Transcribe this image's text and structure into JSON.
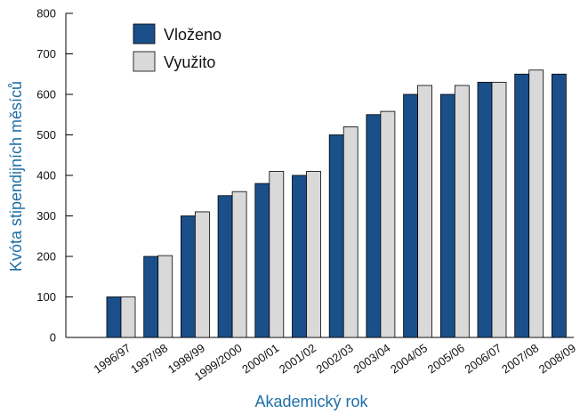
{
  "chart_data": {
    "type": "bar",
    "title": "",
    "xlabel": "Akademický rok",
    "ylabel": "Kvóta stipendijních měsíců",
    "ylim": [
      0,
      800
    ],
    "yticks": [
      0,
      100,
      200,
      300,
      400,
      500,
      600,
      700,
      800
    ],
    "grid": false,
    "legend_position": "top-left",
    "categories": [
      "1996/97",
      "1997/98",
      "1998/99",
      "1999/2000",
      "2000/01",
      "2001/02",
      "2002/03",
      "2003/04",
      "2004/05",
      "2005/06",
      "2006/07",
      "2007/08",
      "2008/09"
    ],
    "series": [
      {
        "name": "Vloženo",
        "color": "#1a4f8a",
        "values": [
          100,
          200,
          300,
          350,
          380,
          400,
          500,
          550,
          600,
          600,
          630,
          650,
          650
        ]
      },
      {
        "name": "Využito",
        "color": "#d9d9d9",
        "values": [
          100,
          202,
          310,
          360,
          410,
          410,
          520,
          558,
          622,
          622,
          630,
          660,
          null
        ]
      }
    ]
  },
  "colors": {
    "axis_title": "#1f6fa6",
    "bar_outline": "#000000"
  }
}
